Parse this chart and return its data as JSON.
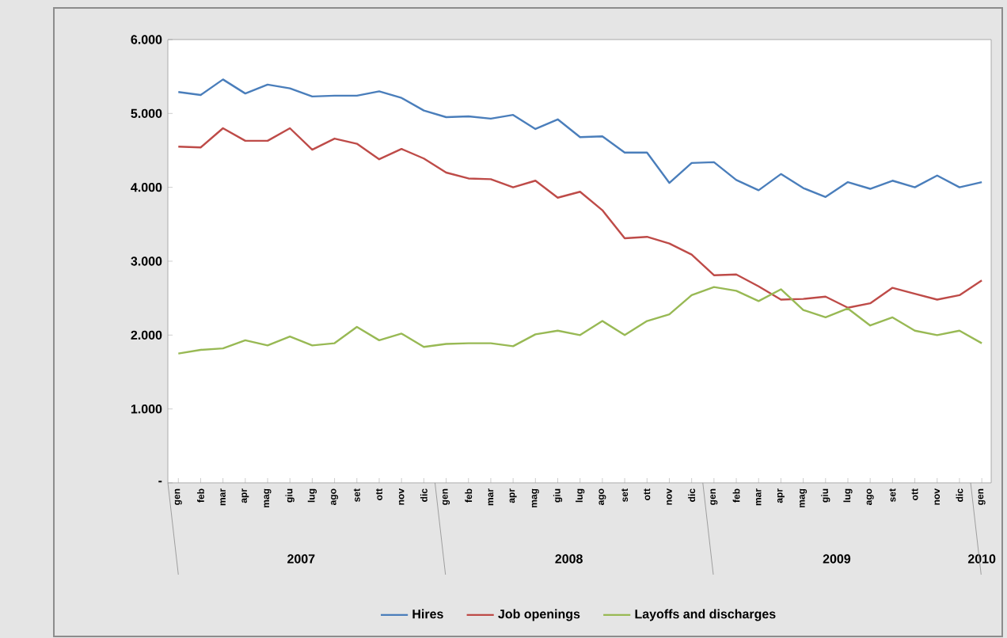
{
  "chart_data": {
    "type": "line",
    "categories": [
      "gen",
      "feb",
      "mar",
      "apr",
      "mag",
      "giu",
      "lug",
      "ago",
      "set",
      "ott",
      "nov",
      "dic",
      "gen",
      "feb",
      "mar",
      "apr",
      "mag",
      "giu",
      "lug",
      "ago",
      "set",
      "ott",
      "nov",
      "dic",
      "gen",
      "feb",
      "mar",
      "apr",
      "mag",
      "giu",
      "lug",
      "ago",
      "set",
      "ott",
      "nov",
      "dic",
      "gen"
    ],
    "series": [
      {
        "name": "Hires",
        "color": "#4a7ebb",
        "values": [
          5290,
          5250,
          5460,
          5270,
          5390,
          5340,
          5230,
          5240,
          5240,
          5300,
          5210,
          5040,
          4950,
          4960,
          4930,
          4980,
          4790,
          4920,
          4680,
          4690,
          4470,
          4470,
          4060,
          4330,
          4340,
          4100,
          3960,
          4180,
          3990,
          3870,
          4070,
          3980,
          4090,
          4000,
          4160,
          4000,
          4070
        ]
      },
      {
        "name": "Job openings",
        "color": "#be4b48",
        "values": [
          4550,
          4540,
          4800,
          4630,
          4630,
          4800,
          4510,
          4660,
          4590,
          4380,
          4520,
          4390,
          4200,
          4120,
          4110,
          4000,
          4090,
          3860,
          3940,
          3690,
          3310,
          3330,
          3240,
          3090,
          2810,
          2820,
          2660,
          2480,
          2490,
          2520,
          2370,
          2430,
          2640,
          2560,
          2480,
          2540,
          2740
        ]
      },
      {
        "name": "Layoffs and discharges",
        "color": "#98b954",
        "values": [
          1750,
          1800,
          1820,
          1930,
          1860,
          1980,
          1860,
          1890,
          2110,
          1930,
          2020,
          1840,
          1880,
          1890,
          1890,
          1850,
          2010,
          2060,
          2000,
          2190,
          2000,
          2190,
          2280,
          2540,
          2650,
          2600,
          2460,
          2620,
          2340,
          2240,
          2360,
          2130,
          2240,
          2060,
          2000,
          2060,
          1890
        ]
      }
    ],
    "ylim": [
      0,
      6000
    ],
    "yticks": [
      {
        "value": 0,
        "label": "-"
      },
      {
        "value": 1000,
        "label": "1.000"
      },
      {
        "value": 2000,
        "label": "2.000"
      },
      {
        "value": 3000,
        "label": "3.000"
      },
      {
        "value": 4000,
        "label": "4.000"
      },
      {
        "value": 5000,
        "label": "5.000"
      },
      {
        "value": 6000,
        "label": "6.000"
      }
    ],
    "annotations": [
      "2007",
      "2008",
      "2009",
      "2010"
    ],
    "legend": "bottom",
    "grid": false,
    "marker": "none",
    "line_style": "solid"
  }
}
